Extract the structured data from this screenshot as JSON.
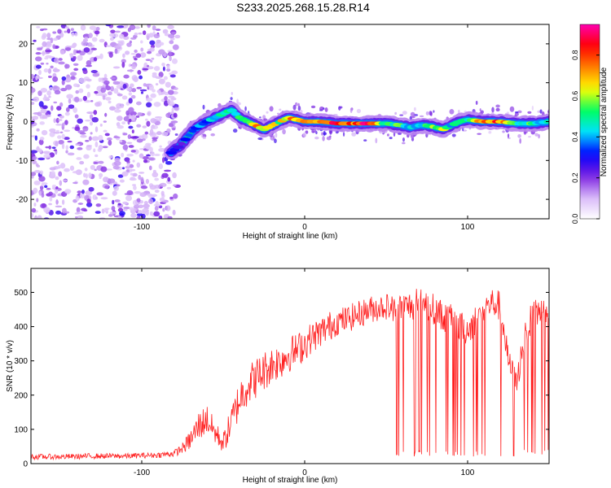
{
  "figure_title": "S233.2025.268.15.28.R14",
  "chart_data": [
    {
      "type": "heatmap",
      "title": "",
      "xlabel": "Height of straight line (km)",
      "ylabel": "Frequency (Hz)",
      "xlim": [
        -168,
        150
      ],
      "ylim": [
        -25,
        25
      ],
      "x_ticks": [
        -100,
        0,
        100
      ],
      "y_ticks": [
        -20,
        -10,
        0,
        10,
        20
      ],
      "colorbar": {
        "label": "Normalized spectral amplitude",
        "range": [
          0,
          0.95
        ],
        "ticks": [
          0.0,
          0.2,
          0.4,
          0.6,
          0.8
        ],
        "colormap": [
          "#ffffff",
          "#d8b8f8",
          "#7a1fe0",
          "#0000ff",
          "#00e0ff",
          "#00ff60",
          "#ffff00",
          "#ff8000",
          "#ff0000",
          "#ff00b0"
        ]
      },
      "noise_region_x": [
        -168,
        -82
      ],
      "ridge": {
        "x": [
          -82,
          -76,
          -72,
          -68,
          -64,
          -60,
          -55,
          -50,
          -45,
          -40,
          -35,
          -30,
          -25,
          -20,
          -15,
          -10,
          -5,
          0,
          5,
          10,
          20,
          30,
          40,
          50,
          60,
          65,
          70,
          75,
          80,
          85,
          90,
          95,
          100,
          110,
          120,
          130,
          140,
          150
        ],
        "frequency_hz": [
          -8,
          -6,
          -4,
          -2,
          -1,
          0,
          1,
          2,
          3,
          1,
          0,
          -1,
          -2,
          -1,
          0,
          1,
          0.5,
          0,
          0,
          0,
          -0.5,
          -0.5,
          -0.5,
          -0.5,
          -1,
          -1.5,
          -1,
          -1,
          -1.5,
          -2,
          -1,
          0,
          0.5,
          0,
          0,
          -0.5,
          -0.5,
          0
        ],
        "amplitude": [
          0.3,
          0.3,
          0.35,
          0.4,
          0.45,
          0.45,
          0.5,
          0.5,
          0.5,
          0.6,
          0.75,
          0.85,
          0.8,
          0.7,
          0.65,
          0.8,
          0.85,
          0.9,
          0.9,
          0.85,
          0.95,
          0.9,
          0.95,
          0.6,
          0.55,
          0.5,
          0.5,
          0.55,
          0.6,
          0.85,
          0.5,
          0.55,
          0.6,
          0.8,
          0.85,
          0.6,
          0.55,
          0.5
        ]
      }
    },
    {
      "type": "line",
      "title": "",
      "xlabel": "Height of straight line (km)",
      "ylabel": "SNR (10 * v/v)",
      "xlim": [
        -168,
        150
      ],
      "ylim": [
        0,
        570
      ],
      "x_ticks": [
        -100,
        0,
        100
      ],
      "y_ticks": [
        0,
        100,
        200,
        300,
        400,
        500
      ],
      "line_color": "#ff2020",
      "series": [
        {
          "name": "SNR",
          "x": [
            -168,
            -150,
            -130,
            -110,
            -90,
            -80,
            -75,
            -70,
            -65,
            -60,
            -55,
            -50,
            -45,
            -40,
            -35,
            -30,
            -25,
            -20,
            -15,
            -10,
            -5,
            0,
            5,
            10,
            15,
            20,
            25,
            30,
            35,
            40,
            45,
            50,
            55,
            60,
            65,
            70,
            75,
            80,
            85,
            90,
            95,
            100,
            105,
            110,
            115,
            120,
            125,
            130,
            135,
            140,
            145,
            150
          ],
          "y": [
            20,
            20,
            22,
            22,
            25,
            30,
            45,
            70,
            110,
            130,
            90,
            60,
            120,
            190,
            230,
            250,
            270,
            290,
            300,
            320,
            330,
            350,
            370,
            385,
            400,
            415,
            420,
            430,
            440,
            450,
            455,
            460,
            450,
            455,
            460,
            470,
            460,
            450,
            430,
            420,
            400,
            390,
            420,
            450,
            470,
            460,
            300,
            230,
            380,
            430,
            450,
            460
          ]
        }
      ],
      "dropout_x_range": [
        54,
        150
      ],
      "dropout_floor": 20,
      "noise_amplitude": [
        8,
        8,
        8,
        8,
        8,
        10,
        15,
        30,
        45,
        45,
        35,
        30,
        50,
        60,
        60,
        60,
        60,
        55,
        55,
        55,
        50,
        50,
        45,
        45,
        45,
        40,
        40,
        40,
        40,
        40,
        40,
        40,
        40,
        45,
        45,
        45,
        45,
        45,
        45,
        45,
        45,
        45,
        45,
        45,
        45,
        45,
        40,
        40,
        45,
        45,
        45,
        45
      ]
    }
  ]
}
